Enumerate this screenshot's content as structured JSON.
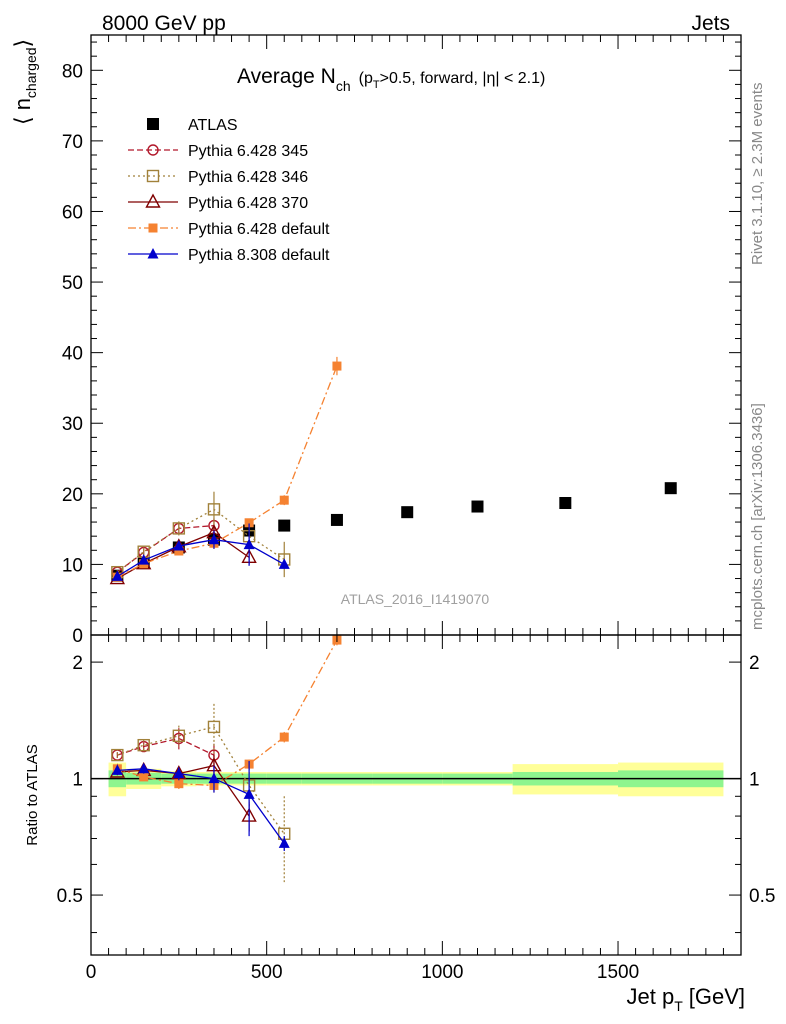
{
  "header": {
    "left": "8000 GeV pp",
    "right": "Jets"
  },
  "side_labels": {
    "rivet": "Rivet 3.1.10, ≥ 2.3M events",
    "mcplots": "mcplots.cern.ch [arXiv:1306.3436]"
  },
  "analysis_id": "ATLAS_2016_I1419070",
  "chart_data": [
    {
      "type": "scatter",
      "panel": "main",
      "title": "Average N",
      "title_sub": "ch",
      "title_cond": "(p",
      "title_cond_sub": "T",
      "title_cond_rest": ">0.5, forward, |η| < 2.1)",
      "ylabel_open": "⟨ n",
      "ylabel_sub": "charged",
      "ylabel_close": "⟩",
      "xlim": [
        0,
        1850
      ],
      "ylim": [
        0,
        85
      ],
      "yticks": [
        "0",
        "10",
        "20",
        "30",
        "40",
        "50",
        "60",
        "70",
        "80"
      ],
      "legend_position": "top-left",
      "series": [
        {
          "name": "ATLAS",
          "color": "#000000",
          "marker": "filled-square",
          "line": "none",
          "x": [
            75,
            150,
            250,
            350,
            450,
            550,
            700,
            900,
            1100,
            1350,
            1650
          ],
          "y": [
            8.4,
            10.2,
            12.4,
            13.5,
            14.8,
            15.5,
            16.3,
            17.4,
            18.2,
            18.7,
            20.8
          ],
          "err": [
            0.3,
            0.3,
            0.3,
            0.4,
            0.4,
            0.4,
            0.4,
            0.4,
            0.5,
            0.5,
            0.6
          ]
        },
        {
          "name": "Pythia 6.428 345",
          "color": "#b2182b",
          "marker": "open-circle",
          "line": "dashed",
          "x": [
            75,
            150,
            250,
            350
          ],
          "y": [
            8.9,
            11.7,
            15.1,
            15.5
          ],
          "err": [
            0.3,
            0.5,
            0.8,
            1.0
          ]
        },
        {
          "name": "Pythia 6.428 346",
          "color": "#a1813a",
          "marker": "open-square",
          "line": "dotted",
          "x": [
            75,
            150,
            250,
            350,
            450,
            550
          ],
          "y": [
            8.9,
            11.8,
            15.1,
            17.8,
            14.0,
            10.7
          ],
          "err": [
            0.3,
            0.6,
            1.0,
            2.5,
            2.0,
            2.5
          ]
        },
        {
          "name": "Pythia 6.428 370",
          "color": "#7f0000",
          "marker": "open-triangle",
          "line": "solid",
          "x": [
            75,
            150,
            250,
            350,
            450
          ],
          "y": [
            8.0,
            10.1,
            12.5,
            14.5,
            11.0
          ],
          "err": [
            0.3,
            0.4,
            0.6,
            1.0,
            1.0
          ]
        },
        {
          "name": "Pythia 6.428 default",
          "color": "#f58231",
          "marker": "filled-square-small",
          "line": "dashdot",
          "x": [
            75,
            150,
            250,
            350,
            450,
            550,
            700
          ],
          "y": [
            8.2,
            10.1,
            11.9,
            13.0,
            15.9,
            19.1,
            38.1
          ],
          "err": [
            0.3,
            0.4,
            0.5,
            0.8,
            0.6,
            0.7,
            1.3
          ]
        },
        {
          "name": "Pythia 8.308 default",
          "color": "#0000cc",
          "marker": "filled-triangle",
          "line": "solid",
          "x": [
            75,
            150,
            250,
            350,
            450,
            550
          ],
          "y": [
            8.3,
            10.6,
            12.6,
            13.5,
            12.8,
            10.0
          ],
          "err": [
            0.3,
            0.4,
            0.6,
            1.3,
            3.0,
            0.6
          ]
        }
      ]
    },
    {
      "type": "scatter",
      "panel": "ratio",
      "ylabel": "Ratio to ATLAS",
      "xlabel": "Jet p",
      "xlabel_sub": "T",
      "xlabel_unit": "[GeV]",
      "xlim": [
        0,
        1850
      ],
      "ylim": [
        0.35,
        2.35
      ],
      "yticks": [
        "0.5",
        "1",
        "2"
      ],
      "xticks": [
        "0",
        "500",
        "1000",
        "1500"
      ],
      "bands": {
        "bins": [
          [
            50,
            100
          ],
          [
            100,
            200
          ],
          [
            200,
            300
          ],
          [
            300,
            400
          ],
          [
            400,
            500
          ],
          [
            500,
            600
          ],
          [
            600,
            800
          ],
          [
            800,
            1000
          ],
          [
            1000,
            1200
          ],
          [
            1200,
            1500
          ],
          [
            1500,
            1800
          ]
        ],
        "inner": [
          0.05,
          0.035,
          0.03,
          0.03,
          0.03,
          0.03,
          0.03,
          0.03,
          0.03,
          0.04,
          0.05
        ],
        "outer": [
          0.1,
          0.06,
          0.045,
          0.04,
          0.04,
          0.04,
          0.04,
          0.04,
          0.04,
          0.09,
          0.1
        ],
        "inner_color": "#8ef58e",
        "outer_color": "#ffff99"
      },
      "series": [
        {
          "name": "Pythia 6.428 345",
          "x": [
            75,
            150,
            250,
            350
          ],
          "y": [
            1.15,
            1.21,
            1.27,
            1.15
          ],
          "err": [
            0.02,
            0.03,
            0.08,
            0.08
          ]
        },
        {
          "name": "Pythia 6.428 346",
          "x": [
            75,
            150,
            250,
            350,
            450,
            550
          ],
          "y": [
            1.15,
            1.22,
            1.29,
            1.36,
            0.96,
            0.72
          ],
          "err": [
            0.02,
            0.04,
            0.08,
            0.2,
            0.13,
            0.18
          ]
        },
        {
          "name": "Pythia 6.428 370",
          "x": [
            75,
            150,
            250,
            350,
            450
          ],
          "y": [
            1.04,
            1.05,
            1.03,
            1.08,
            0.8
          ],
          "err": [
            0.02,
            0.03,
            0.04,
            0.07,
            0.07
          ]
        },
        {
          "name": "Pythia 6.428 default",
          "x": [
            75,
            150,
            250,
            350,
            450,
            550,
            700
          ],
          "y": [
            1.06,
            1.01,
            0.97,
            0.96,
            1.09,
            1.28,
            2.28
          ],
          "err": [
            0.02,
            0.02,
            0.03,
            0.04,
            0.03,
            0.04,
            0.07
          ]
        },
        {
          "name": "Pythia 8.308 default",
          "x": [
            75,
            150,
            250,
            350,
            450,
            550
          ],
          "y": [
            1.05,
            1.06,
            1.03,
            1.0,
            0.91,
            0.68
          ],
          "err": [
            0.02,
            0.03,
            0.04,
            0.08,
            0.2,
            0.03
          ]
        }
      ]
    }
  ]
}
